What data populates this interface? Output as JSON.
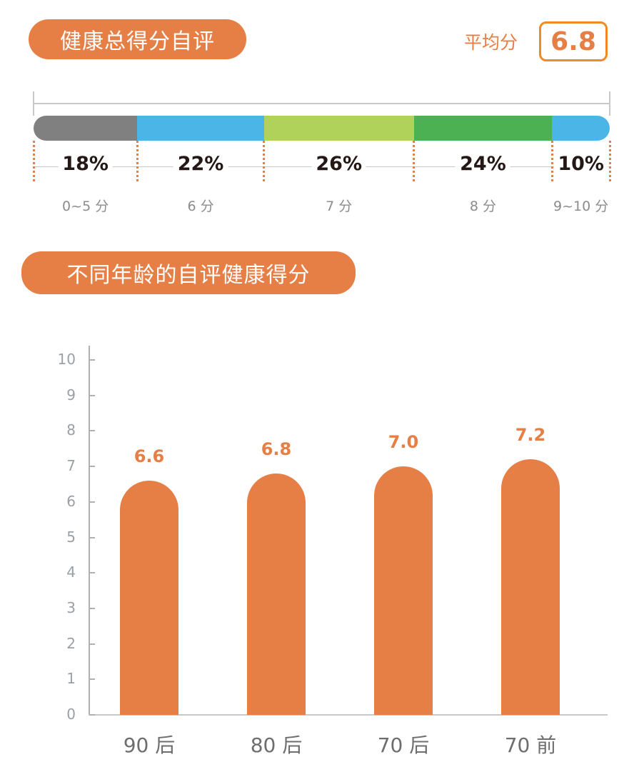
{
  "section1": {
    "title": "健康总得分自评",
    "average_label": "平均分",
    "average_value": "6.8"
  },
  "section2": {
    "title": "不同年龄的自评健康得分"
  },
  "chart_data": [
    {
      "type": "bar",
      "orientation": "horizontal-stacked",
      "title": "健康总得分自评",
      "categories": [
        "0~5 分",
        "6 分",
        "7 分",
        "8 分",
        "9~10 分"
      ],
      "values": [
        18,
        22,
        26,
        24,
        10
      ],
      "value_labels": [
        "18%",
        "22%",
        "26%",
        "24%",
        "10%"
      ],
      "colors": [
        "#808080",
        "#4bb5e8",
        "#b0d25a",
        "#4cb153",
        "#4bb5e8"
      ],
      "unit": "%",
      "annotation": {
        "label": "平均分",
        "value": 6.8
      }
    },
    {
      "type": "bar",
      "title": "不同年龄的自评健康得分",
      "categories": [
        "90 后",
        "80 后",
        "70 后",
        "70 前"
      ],
      "values": [
        6.6,
        6.8,
        7.0,
        7.2
      ],
      "value_labels": [
        "6.6",
        "6.8",
        "7.0",
        "7.2"
      ],
      "xlabel": "",
      "ylabel": "",
      "ylim": [
        0,
        10
      ],
      "yticks": [
        "0",
        "1",
        "2",
        "3",
        "4",
        "5",
        "6",
        "7",
        "8",
        "9",
        "10"
      ],
      "grid": false,
      "color": "#e67f46"
    }
  ]
}
